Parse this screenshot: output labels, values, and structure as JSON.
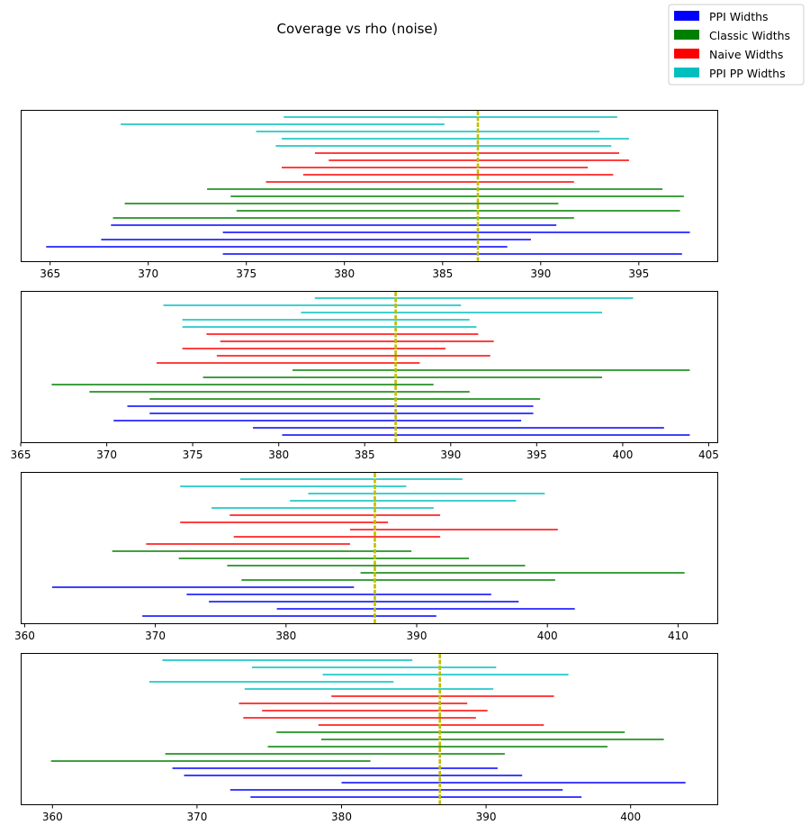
{
  "title": "Coverage vs rho (noise)",
  "legend": {
    "location": "top-right",
    "entries": [
      {
        "label": "PPI Widths",
        "color": "#0000ff"
      },
      {
        "label": "Classic Widths",
        "color": "#008000"
      },
      {
        "label": "Naive Widths",
        "color": "#ff0000"
      },
      {
        "label": "PPI PP Widths",
        "color": "#00bfbf"
      }
    ]
  },
  "chart_data": [
    {
      "type": "interval",
      "xlim": [
        363.5,
        399.0
      ],
      "xticks": [
        365,
        370,
        375,
        380,
        385,
        390,
        395
      ],
      "true_value": 386.8,
      "intervals": {
        "ppi": [
          [
            373.8,
            397.2
          ],
          [
            364.8,
            388.3
          ],
          [
            367.6,
            389.5
          ],
          [
            373.8,
            397.6
          ],
          [
            368.1,
            390.8
          ]
        ],
        "classic": [
          [
            368.2,
            391.7
          ],
          [
            374.5,
            397.1
          ],
          [
            368.8,
            390.9
          ],
          [
            374.2,
            397.3
          ],
          [
            373.0,
            396.2
          ]
        ],
        "naive": [
          [
            376.0,
            391.7
          ],
          [
            377.9,
            393.7
          ],
          [
            376.8,
            392.4
          ],
          [
            379.2,
            394.5
          ],
          [
            378.5,
            394.0
          ]
        ],
        "ppi_pp": [
          [
            376.5,
            393.6
          ],
          [
            376.8,
            394.5
          ],
          [
            375.5,
            393.0
          ],
          [
            368.6,
            385.1
          ],
          [
            376.9,
            393.9
          ]
        ]
      }
    },
    {
      "type": "interval",
      "xlim": [
        365.0,
        405.5
      ],
      "xticks": [
        365,
        370,
        375,
        380,
        385,
        390,
        395,
        400,
        405
      ],
      "true_value": 386.8,
      "intervals": {
        "ppi": [
          [
            380.2,
            403.9
          ],
          [
            378.5,
            402.4
          ],
          [
            370.4,
            394.1
          ],
          [
            372.5,
            394.8
          ],
          [
            371.2,
            394.8
          ]
        ],
        "classic": [
          [
            372.5,
            395.2
          ],
          [
            369.0,
            391.1
          ],
          [
            366.8,
            389.0
          ],
          [
            375.6,
            398.8
          ],
          [
            380.8,
            403.9
          ]
        ],
        "naive": [
          [
            372.9,
            388.2
          ],
          [
            376.4,
            392.3
          ],
          [
            374.4,
            389.7
          ],
          [
            376.6,
            392.5
          ],
          [
            375.8,
            391.6
          ]
        ],
        "ppi_pp": [
          [
            374.4,
            391.5
          ],
          [
            374.4,
            391.1
          ],
          [
            381.3,
            398.8
          ],
          [
            373.3,
            390.6
          ],
          [
            382.1,
            400.6
          ]
        ]
      }
    },
    {
      "type": "interval",
      "xlim": [
        359.7,
        413.0
      ],
      "xticks": [
        360,
        370,
        380,
        390,
        400,
        410
      ],
      "true_value": 386.8,
      "intervals": {
        "ppi": [
          [
            369.0,
            391.5
          ],
          [
            379.3,
            402.1
          ],
          [
            374.1,
            397.8
          ],
          [
            372.4,
            395.7
          ],
          [
            362.1,
            385.2
          ]
        ],
        "classic": [
          [
            376.6,
            400.6
          ],
          [
            385.7,
            410.5
          ],
          [
            375.5,
            398.3
          ],
          [
            371.8,
            394.0
          ],
          [
            366.7,
            389.6
          ]
        ],
        "naive": [
          [
            369.3,
            384.9
          ],
          [
            376.0,
            391.8
          ],
          [
            384.9,
            400.8
          ],
          [
            371.9,
            387.8
          ],
          [
            375.7,
            391.8
          ]
        ],
        "ppi_pp": [
          [
            374.3,
            391.3
          ],
          [
            380.3,
            397.6
          ],
          [
            381.7,
            399.8
          ],
          [
            371.9,
            389.2
          ],
          [
            376.5,
            393.5
          ]
        ]
      }
    },
    {
      "type": "interval",
      "xlim": [
        357.8,
        406.0
      ],
      "xticks": [
        360,
        370,
        380,
        390,
        400
      ],
      "true_value": 386.8,
      "intervals": {
        "ppi": [
          [
            373.7,
            396.6
          ],
          [
            372.3,
            395.3
          ],
          [
            380.0,
            403.8
          ],
          [
            369.1,
            392.5
          ],
          [
            368.3,
            390.8
          ]
        ],
        "classic": [
          [
            359.9,
            382.0
          ],
          [
            367.8,
            391.3
          ],
          [
            374.9,
            398.4
          ],
          [
            378.6,
            402.3
          ],
          [
            375.5,
            399.6
          ]
        ],
        "naive": [
          [
            378.4,
            394.0
          ],
          [
            373.2,
            389.3
          ],
          [
            374.5,
            390.1
          ],
          [
            372.9,
            388.7
          ],
          [
            379.3,
            394.7
          ]
        ],
        "ppi_pp": [
          [
            373.3,
            390.5
          ],
          [
            366.7,
            383.6
          ],
          [
            378.7,
            395.7
          ],
          [
            373.8,
            390.7
          ],
          [
            367.6,
            384.9
          ]
        ]
      }
    }
  ]
}
